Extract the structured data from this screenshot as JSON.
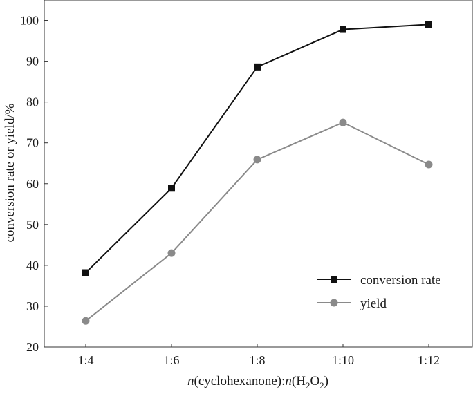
{
  "chart_data": {
    "type": "line",
    "categories": [
      "1:4",
      "1:6",
      "1:8",
      "1:10",
      "1:12"
    ],
    "series": [
      {
        "name": "conversion rate",
        "marker": "square",
        "color": "#111111",
        "values": [
          38.2,
          58.9,
          88.6,
          97.8,
          99.0
        ]
      },
      {
        "name": "yield",
        "marker": "circle",
        "color": "#8a8a8a",
        "values": [
          26.4,
          43.0,
          65.9,
          75.0,
          64.7
        ]
      }
    ],
    "ylabel": "conversion rate or yield/%",
    "xlabel": {
      "n1": "n",
      "open1": "(",
      "reagent": "cyclohexanone",
      "close1": "):",
      "n2": "n",
      "open2": "(",
      "h": "H",
      "h_sub": "2",
      "o": "O",
      "o_sub": "2",
      "close2": ")"
    },
    "ylim": [
      20,
      105
    ],
    "yticks": [
      20,
      30,
      40,
      50,
      60,
      70,
      80,
      90,
      100
    ],
    "legend_position": "lower-right",
    "grid": false
  }
}
